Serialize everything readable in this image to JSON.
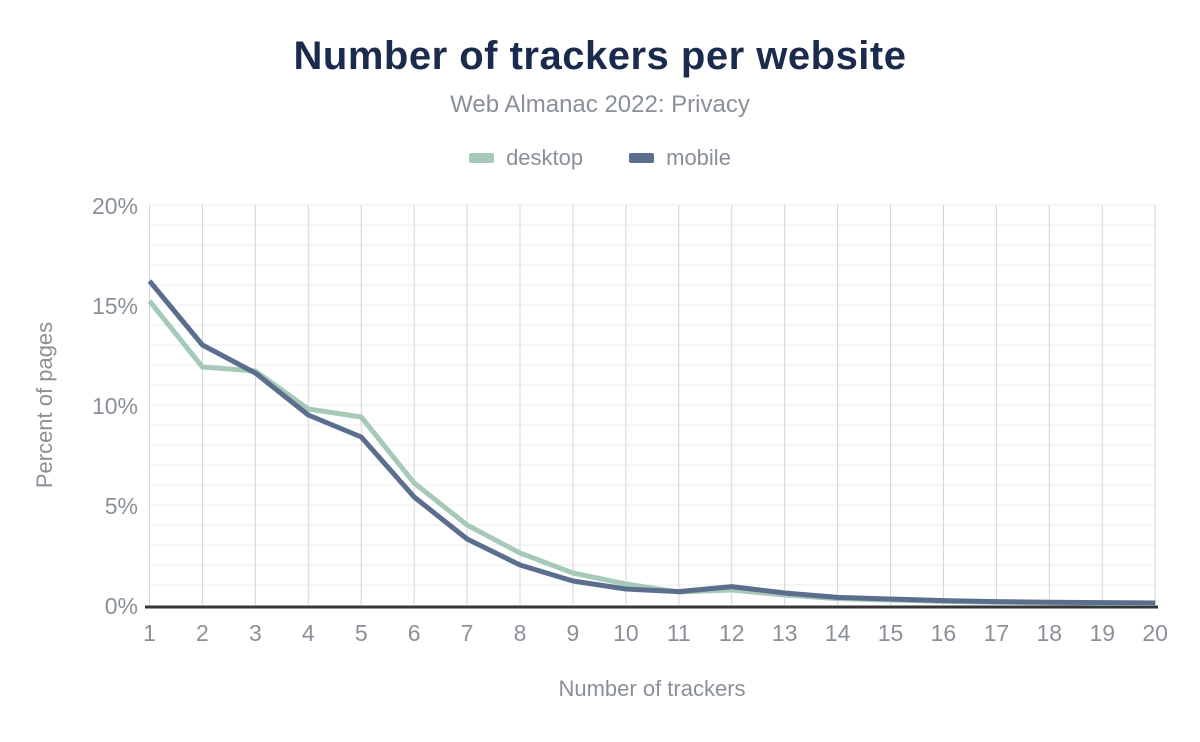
{
  "chart_data": {
    "type": "line",
    "title": "Number of trackers per website",
    "subtitle": "Web Almanac 2022: Privacy",
    "xlabel": "Number of trackers",
    "ylabel": "Percent of pages",
    "x": [
      1,
      2,
      3,
      4,
      5,
      6,
      7,
      8,
      9,
      10,
      11,
      12,
      13,
      14,
      15,
      16,
      17,
      18,
      19,
      20
    ],
    "series": [
      {
        "name": "desktop",
        "color": "#a6cab7",
        "values": [
          15.2,
          11.9,
          11.7,
          9.8,
          9.4,
          6.1,
          4.0,
          2.6,
          1.6,
          1.05,
          0.65,
          0.75,
          0.5,
          0.32,
          0.25,
          0.18,
          0.14,
          0.11,
          0.09,
          0.08
        ]
      },
      {
        "name": "mobile",
        "color": "#5b6e8e",
        "values": [
          16.2,
          13.0,
          11.6,
          9.5,
          8.4,
          5.4,
          3.3,
          2.0,
          1.2,
          0.8,
          0.67,
          0.92,
          0.6,
          0.38,
          0.3,
          0.22,
          0.17,
          0.14,
          0.12,
          0.1
        ]
      }
    ],
    "ylim": [
      0,
      20
    ],
    "y_major_ticks": [
      0,
      5,
      10,
      15,
      20
    ],
    "y_minor_step": 1,
    "y_tick_suffix": "%",
    "legend_position": "top",
    "grid": "both"
  },
  "colors": {
    "background": "#ffffff",
    "title": "#1b2b4d",
    "text_muted": "#8a9097",
    "grid_vertical": "#d4d4d4",
    "grid_horizontal": "#ececec",
    "axis_line": "#363636"
  }
}
